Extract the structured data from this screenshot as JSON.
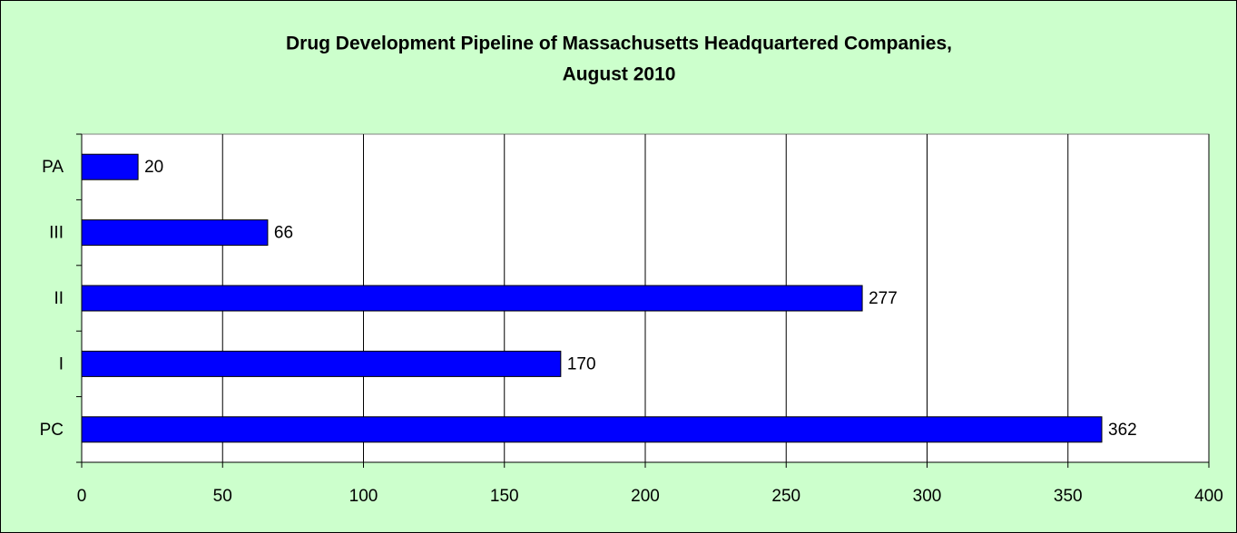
{
  "chart_data": {
    "type": "bar",
    "orientation": "horizontal",
    "title": [
      "Drug Development Pipeline of Massachusetts Headquartered Companies,",
      "August 2010"
    ],
    "categories": [
      "PC",
      "I",
      "II",
      "III",
      "PA"
    ],
    "values": [
      362,
      170,
      277,
      66,
      20
    ],
    "color": "#0000ff",
    "xlim": [
      0,
      400
    ],
    "xticks": [
      0,
      50,
      100,
      150,
      200,
      250,
      300,
      350,
      400
    ],
    "grid": true
  }
}
